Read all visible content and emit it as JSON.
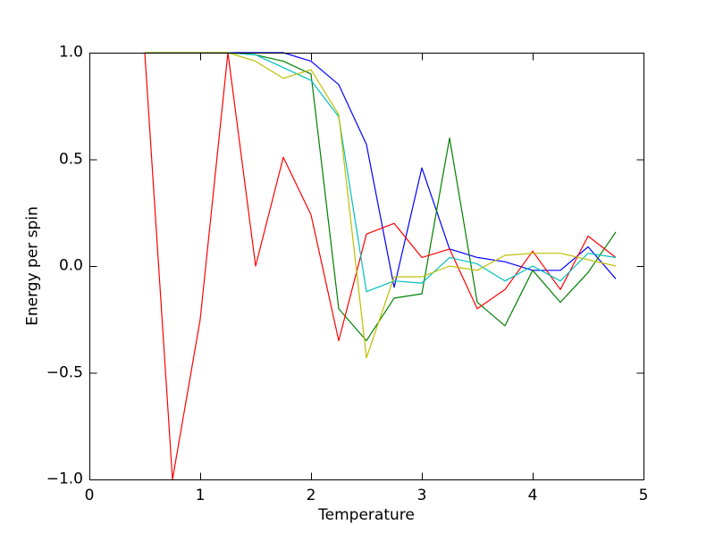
{
  "figure": {
    "background": "#ffffff",
    "frame_color": "#000000"
  },
  "chart_data": {
    "type": "line",
    "title": "",
    "xlabel": "Temperature",
    "ylabel": "Energy per spin",
    "xlim": [
      0,
      5
    ],
    "ylim": [
      -1.0,
      1.0
    ],
    "grid": false,
    "legend": "none",
    "x_ticks": [
      0,
      1,
      2,
      3,
      4,
      5
    ],
    "x_tick_labels": [
      "0",
      "1",
      "2",
      "3",
      "4",
      "5"
    ],
    "y_ticks": [
      1.0,
      0.5,
      0.0,
      -0.5,
      -1.0
    ],
    "y_tick_labels": [
      "1.0",
      "0.5",
      "0.0",
      "−0.5",
      "−1.0"
    ],
    "x": [
      0.5,
      0.75,
      1.0,
      1.25,
      1.5,
      1.75,
      2.0,
      2.25,
      2.5,
      2.75,
      3.0,
      3.25,
      3.5,
      3.75,
      4.0,
      4.25,
      4.5,
      4.75
    ],
    "series": [
      {
        "name": "series-blue",
        "color": "#0000ff",
        "values": [
          1.0,
          1.0,
          1.0,
          1.0,
          1.0,
          1.0,
          0.96,
          0.85,
          0.57,
          -0.1,
          0.46,
          0.08,
          0.04,
          0.02,
          -0.02,
          -0.02,
          0.09,
          -0.06
        ]
      },
      {
        "name": "series-green",
        "color": "#008000",
        "values": [
          1.0,
          1.0,
          1.0,
          1.0,
          0.99,
          0.96,
          0.9,
          -0.2,
          -0.35,
          -0.15,
          -0.13,
          0.6,
          -0.17,
          -0.28,
          -0.02,
          -0.17,
          -0.03,
          0.16
        ]
      },
      {
        "name": "series-red",
        "color": "#ff0000",
        "values": [
          1.0,
          -1.0,
          -0.25,
          1.0,
          0.0,
          0.51,
          0.24,
          -0.35,
          0.15,
          0.2,
          0.04,
          0.08,
          -0.2,
          -0.11,
          0.07,
          -0.11,
          0.14,
          0.04
        ]
      },
      {
        "name": "series-cyan",
        "color": "#00bfbf",
        "values": [
          1.0,
          1.0,
          1.0,
          1.0,
          0.99,
          0.93,
          0.87,
          0.7,
          -0.12,
          -0.07,
          -0.08,
          0.04,
          0.01,
          -0.07,
          0.0,
          -0.07,
          0.06,
          0.04
        ]
      },
      {
        "name": "series-yellow",
        "color": "#bfbf00",
        "values": [
          1.0,
          1.0,
          1.0,
          1.0,
          0.96,
          0.88,
          0.92,
          0.71,
          -0.43,
          -0.05,
          -0.05,
          0.0,
          -0.02,
          0.05,
          0.06,
          0.06,
          0.03,
          0.0
        ]
      }
    ]
  }
}
